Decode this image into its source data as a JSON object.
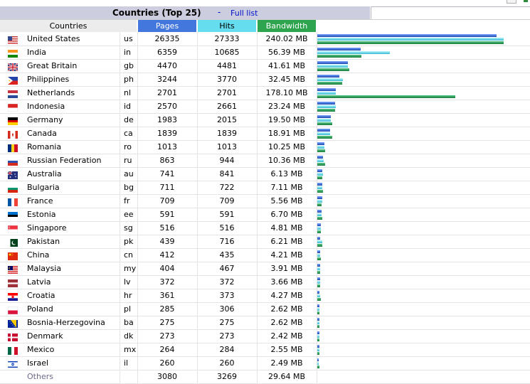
{
  "title": "Countries (Top 25)",
  "separator": "-",
  "full_list_link": "Full list",
  "columns": {
    "countries": "Countries",
    "pages": "Pages",
    "hits": "Hits",
    "bandwidth": "Bandwidth"
  },
  "colors": {
    "pages": "#4477dd",
    "hits": "#66ddee",
    "bandwidth": "#2ea44f",
    "title_bg": "#cccdde"
  },
  "bar_max": {
    "pages": 27333,
    "hits": 27333,
    "bandwidth_mb": 240.02
  },
  "rows": [
    {
      "name": "United States",
      "code": "us",
      "pages": "26335",
      "hits": "27333",
      "bandwidth": "240.02 MB",
      "bw": 240.02,
      "flag": "us-flag-icon"
    },
    {
      "name": "India",
      "code": "in",
      "pages": "6359",
      "hits": "10685",
      "bandwidth": "56.39 MB",
      "bw": 56.39,
      "flag": "in-flag-icon"
    },
    {
      "name": "Great Britain",
      "code": "gb",
      "pages": "4470",
      "hits": "4481",
      "bandwidth": "41.61 MB",
      "bw": 41.61,
      "flag": "gb-flag-icon"
    },
    {
      "name": "Philippines",
      "code": "ph",
      "pages": "3244",
      "hits": "3770",
      "bandwidth": "32.45 MB",
      "bw": 32.45,
      "flag": "ph-flag-icon"
    },
    {
      "name": "Netherlands",
      "code": "nl",
      "pages": "2701",
      "hits": "2701",
      "bandwidth": "178.10 MB",
      "bw": 178.1,
      "flag": "nl-flag-icon"
    },
    {
      "name": "Indonesia",
      "code": "id",
      "pages": "2570",
      "hits": "2661",
      "bandwidth": "23.24 MB",
      "bw": 23.24,
      "flag": "id-flag-icon"
    },
    {
      "name": "Germany",
      "code": "de",
      "pages": "1983",
      "hits": "2015",
      "bandwidth": "19.50 MB",
      "bw": 19.5,
      "flag": "de-flag-icon"
    },
    {
      "name": "Canada",
      "code": "ca",
      "pages": "1839",
      "hits": "1839",
      "bandwidth": "18.91 MB",
      "bw": 18.91,
      "flag": "ca-flag-icon"
    },
    {
      "name": "Romania",
      "code": "ro",
      "pages": "1013",
      "hits": "1013",
      "bandwidth": "10.25 MB",
      "bw": 10.25,
      "flag": "ro-flag-icon"
    },
    {
      "name": "Russian Federation",
      "code": "ru",
      "pages": "863",
      "hits": "944",
      "bandwidth": "10.36 MB",
      "bw": 10.36,
      "flag": "ru-flag-icon"
    },
    {
      "name": "Australia",
      "code": "au",
      "pages": "741",
      "hits": "841",
      "bandwidth": "6.13 MB",
      "bw": 6.13,
      "flag": "au-flag-icon"
    },
    {
      "name": "Bulgaria",
      "code": "bg",
      "pages": "711",
      "hits": "722",
      "bandwidth": "7.11 MB",
      "bw": 7.11,
      "flag": "bg-flag-icon"
    },
    {
      "name": "France",
      "code": "fr",
      "pages": "709",
      "hits": "709",
      "bandwidth": "5.56 MB",
      "bw": 5.56,
      "flag": "fr-flag-icon"
    },
    {
      "name": "Estonia",
      "code": "ee",
      "pages": "591",
      "hits": "591",
      "bandwidth": "6.70 MB",
      "bw": 6.7,
      "flag": "ee-flag-icon"
    },
    {
      "name": "Singapore",
      "code": "sg",
      "pages": "516",
      "hits": "516",
      "bandwidth": "4.81 MB",
      "bw": 4.81,
      "flag": "sg-flag-icon"
    },
    {
      "name": "Pakistan",
      "code": "pk",
      "pages": "439",
      "hits": "716",
      "bandwidth": "6.21 MB",
      "bw": 6.21,
      "flag": "pk-flag-icon"
    },
    {
      "name": "China",
      "code": "cn",
      "pages": "412",
      "hits": "435",
      "bandwidth": "4.21 MB",
      "bw": 4.21,
      "flag": "cn-flag-icon"
    },
    {
      "name": "Malaysia",
      "code": "my",
      "pages": "404",
      "hits": "467",
      "bandwidth": "3.91 MB",
      "bw": 3.91,
      "flag": "my-flag-icon"
    },
    {
      "name": "Latvia",
      "code": "lv",
      "pages": "372",
      "hits": "372",
      "bandwidth": "3.66 MB",
      "bw": 3.66,
      "flag": "lv-flag-icon"
    },
    {
      "name": "Croatia",
      "code": "hr",
      "pages": "361",
      "hits": "373",
      "bandwidth": "4.27 MB",
      "bw": 4.27,
      "flag": "hr-flag-icon"
    },
    {
      "name": "Poland",
      "code": "pl",
      "pages": "285",
      "hits": "306",
      "bandwidth": "2.62 MB",
      "bw": 2.62,
      "flag": "pl-flag-icon"
    },
    {
      "name": "Bosnia-Herzegovina",
      "code": "ba",
      "pages": "275",
      "hits": "275",
      "bandwidth": "2.62 MB",
      "bw": 2.62,
      "flag": "ba-flag-icon"
    },
    {
      "name": "Denmark",
      "code": "dk",
      "pages": "273",
      "hits": "273",
      "bandwidth": "2.42 MB",
      "bw": 2.42,
      "flag": "dk-flag-icon"
    },
    {
      "name": "Mexico",
      "code": "mx",
      "pages": "264",
      "hits": "284",
      "bandwidth": "2.55 MB",
      "bw": 2.55,
      "flag": "mx-flag-icon"
    },
    {
      "name": "Israel",
      "code": "il",
      "pages": "260",
      "hits": "260",
      "bandwidth": "2.49 MB",
      "bw": 2.49,
      "flag": "il-flag-icon"
    }
  ],
  "others": {
    "label": "Others",
    "pages": "3080",
    "hits": "3269",
    "bandwidth": "29.64 MB"
  }
}
